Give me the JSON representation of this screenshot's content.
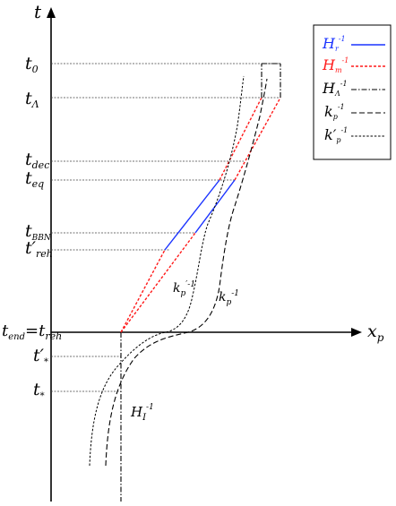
{
  "axes": {
    "y_label": "t",
    "x_label": "x",
    "x_label_sub": "p"
  },
  "time_labels": {
    "t0": {
      "base": "t",
      "sub": "0"
    },
    "tLambda": {
      "base": "t",
      "sub": "Λ"
    },
    "tdec": {
      "base": "t",
      "sub": "dec"
    },
    "teq": {
      "base": "t",
      "sub": "eq"
    },
    "tBBN": {
      "base": "t",
      "sub": "BBN"
    },
    "treh_prime": {
      "base": "t′",
      "sub": "reh"
    },
    "tend": {
      "base": "t",
      "sub": "end",
      "eq": "=",
      "rhs_base": "t",
      "rhs_sub": "reh"
    },
    "tstar_prime": {
      "base": "t′",
      "sub": "*"
    },
    "tstar": {
      "base": "t",
      "sub": "*"
    }
  },
  "legend": [
    {
      "base": "H",
      "sub": "r",
      "sup": "-1",
      "color": "#1a33ff"
    },
    {
      "base": "H",
      "sub": "m",
      "sup": "-1",
      "color": "#ff1a1a"
    },
    {
      "base": "H",
      "sub": "Λ",
      "sup": "-1",
      "color": "#000000"
    },
    {
      "base": "k",
      "sub": "p",
      "sup": "-1",
      "color": "#000000"
    },
    {
      "base": "k′",
      "sub": "p",
      "sup": "-1",
      "color": "#000000"
    }
  ],
  "annotations": {
    "kp_prime": {
      "base": "k",
      "sub": "p",
      "sup": "′-1"
    },
    "kp": {
      "base": "k",
      "sub": "p",
      "sup": "-1"
    },
    "HI": {
      "base": "H",
      "sub": "I",
      "sup": "-1"
    }
  },
  "colors": {
    "radiation": "#1a33ff",
    "matter": "#ff1a1a",
    "axis": "#000000"
  }
}
